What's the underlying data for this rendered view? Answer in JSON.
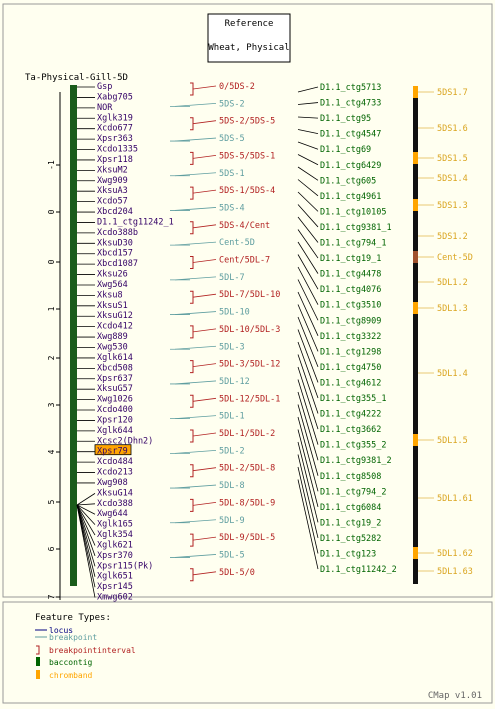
{
  "header": {
    "line1": "Reference",
    "line2": "Wheat, Physical"
  },
  "map_title": "Ta-Physical-Gill-5D",
  "axis_ticks": [
    "-1",
    "0",
    "0",
    "1",
    "2",
    "3",
    "4",
    "5",
    "6",
    "7"
  ],
  "loci": [
    {
      "label": "Gsp"
    },
    {
      "label": "Xabg705"
    },
    {
      "label": "NOR"
    },
    {
      "label": "Xglk319"
    },
    {
      "label": "Xcdo677"
    },
    {
      "label": "Xpsr363"
    },
    {
      "label": "Xcdo1335"
    },
    {
      "label": "Xpsr118"
    },
    {
      "label": "XksuM2"
    },
    {
      "label": "Xwg909"
    },
    {
      "label": "XksuA3"
    },
    {
      "label": "Xcdo57"
    },
    {
      "label": "Xbcd204"
    },
    {
      "label": "D1.1_ctg11242_1"
    },
    {
      "label": "Xcdo388b"
    },
    {
      "label": "XksuD30"
    },
    {
      "label": "Xbcd157"
    },
    {
      "label": "Xbcd1087"
    },
    {
      "label": "Xksu26"
    },
    {
      "label": "Xwg564"
    },
    {
      "label": "Xksu8"
    },
    {
      "label": "XksuS1"
    },
    {
      "label": "XksuG12"
    },
    {
      "label": "Xcdo412"
    },
    {
      "label": "Xwg889"
    },
    {
      "label": "Xwg530"
    },
    {
      "label": "Xglk614"
    },
    {
      "label": "Xbcd508"
    },
    {
      "label": "Xpsr637"
    },
    {
      "label": "XksuG57"
    },
    {
      "label": "Xwg1026"
    },
    {
      "label": "Xcdo400"
    },
    {
      "label": "Xpsr120"
    },
    {
      "label": "Xglk644"
    },
    {
      "label": "Xcsc2(Dhn2)"
    },
    {
      "label": "Xpsr79",
      "highlight": true
    },
    {
      "label": "Xcdo484"
    },
    {
      "label": "Xcdo213"
    },
    {
      "label": "Xwg908"
    },
    {
      "label": "XksuG14"
    },
    {
      "label": "Xcdo388"
    },
    {
      "label": "Xwg644"
    },
    {
      "label": "Xglk165"
    },
    {
      "label": "Xglk354"
    },
    {
      "label": "Xglk621"
    },
    {
      "label": "Xpsr370"
    },
    {
      "label": "Xpsr115(Pk)"
    },
    {
      "label": "Xglk651"
    },
    {
      "label": "Xpsr145"
    },
    {
      "label": "Xmwg602"
    }
  ],
  "intervals": [
    {
      "label": "0/5DS-2",
      "type": "interval"
    },
    {
      "label": "5DS-2",
      "type": "breakpoint"
    },
    {
      "label": "5DS-2/5DS-5",
      "type": "interval"
    },
    {
      "label": "5DS-5",
      "type": "breakpoint"
    },
    {
      "label": "5DS-5/5DS-1",
      "type": "interval"
    },
    {
      "label": "5DS-1",
      "type": "breakpoint"
    },
    {
      "label": "5DS-1/5DS-4",
      "type": "interval"
    },
    {
      "label": "5DS-4",
      "type": "breakpoint"
    },
    {
      "label": "5DS-4/Cent",
      "type": "interval"
    },
    {
      "label": "Cent-5D",
      "type": "breakpoint"
    },
    {
      "label": "Cent/5DL-7",
      "type": "interval"
    },
    {
      "label": "5DL-7",
      "type": "breakpoint"
    },
    {
      "label": "5DL-7/5DL-10",
      "type": "interval"
    },
    {
      "label": "5DL-10",
      "type": "breakpoint"
    },
    {
      "label": "5DL-10/5DL-3",
      "type": "interval"
    },
    {
      "label": "5DL-3",
      "type": "breakpoint"
    },
    {
      "label": "5DL-3/5DL-12",
      "type": "interval"
    },
    {
      "label": "5DL-12",
      "type": "breakpoint"
    },
    {
      "label": "5DL-12/5DL-1",
      "type": "interval"
    },
    {
      "label": "5DL-1",
      "type": "breakpoint"
    },
    {
      "label": "5DL-1/5DL-2",
      "type": "interval"
    },
    {
      "label": "5DL-2",
      "type": "breakpoint"
    },
    {
      "label": "5DL-2/5DL-8",
      "type": "interval"
    },
    {
      "label": "5DL-8",
      "type": "breakpoint"
    },
    {
      "label": "5DL-8/5DL-9",
      "type": "interval"
    },
    {
      "label": "5DL-9",
      "type": "breakpoint"
    },
    {
      "label": "5DL-9/5DL-5",
      "type": "interval"
    },
    {
      "label": "5DL-5",
      "type": "breakpoint"
    },
    {
      "label": "5DL-5/0",
      "type": "interval"
    }
  ],
  "contigs": [
    "D1.1_ctg5713",
    "D1.1_ctg4733",
    "D1.1_ctg95",
    "D1.1_ctg4547",
    "D1.1_ctg69",
    "D1.1_ctg6429",
    "D1.1_ctg605",
    "D1.1_ctg4961",
    "D1.1_ctg10105",
    "D1.1_ctg9381_1",
    "D1.1_ctg794_1",
    "D1.1_ctg19_1",
    "D1.1_ctg4478",
    "D1.1_ctg4076",
    "D1.1_ctg3510",
    "D1.1_ctg8909",
    "D1.1_ctg3322",
    "D1.1_ctg1298",
    "D1.1_ctg4750",
    "D1.1_ctg4612",
    "D1.1_ctg355_1",
    "D1.1_ctg4222",
    "D1.1_ctg3662",
    "D1.1_ctg355_2",
    "D1.1_ctg9381_2",
    "D1.1_ctg8508",
    "D1.1_ctg794_2",
    "D1.1_ctg6084",
    "D1.1_ctg19_2",
    "D1.1_ctg5282",
    "D1.1_ctg123",
    "D1.1_ctg11242_2"
  ],
  "chrombands": [
    {
      "label": "5DS1.7"
    },
    {
      "label": "5DS1.6"
    },
    {
      "label": "5DS1.5"
    },
    {
      "label": "5DS1.4"
    },
    {
      "label": "5DS1.3"
    },
    {
      "label": "5DS1.2"
    },
    {
      "label": "Cent-5D"
    },
    {
      "label": "5DL1.2"
    },
    {
      "label": "5DL1.3"
    },
    {
      "label": "5DL1.4"
    },
    {
      "label": "5DL1.5"
    },
    {
      "label": "5DL1.61"
    },
    {
      "label": "5DL1.62"
    },
    {
      "label": "5DL1.63"
    }
  ],
  "legend": {
    "title": "Feature Types:",
    "items": [
      {
        "label": "locus",
        "color": "#000080"
      },
      {
        "label": "breakpoint",
        "color": "#5f9ea0"
      },
      {
        "label": "breakpointinterval",
        "color": "#b22222"
      },
      {
        "label": "baccontig",
        "color": "#006400"
      },
      {
        "label": "chromband",
        "color": "#ffa500"
      }
    ]
  },
  "footer": "CMap v1.01",
  "colors": {
    "background": "#fffff0",
    "locus_text": "#330066",
    "interval_text": "#b22222",
    "breakpoint_text": "#5f9ea0",
    "contig_text": "#006400",
    "chromband_text": "#daa520",
    "map_bar": "#1a5c1a",
    "chrom_bar": "#111111",
    "band_fill": "#ffa500",
    "highlight": "#ffa500"
  }
}
